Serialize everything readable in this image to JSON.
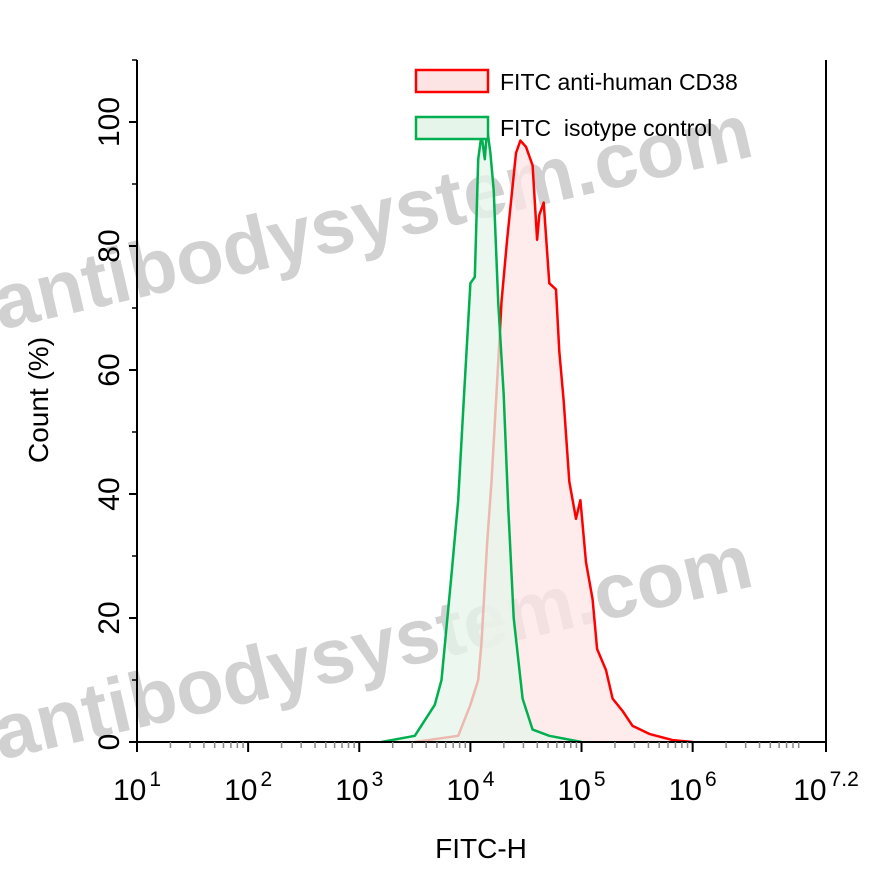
{
  "chart_data": {
    "type": "area",
    "title": "",
    "xlabel": "FITC-H",
    "ylabel": "Count  (%)",
    "x_scale": "log10",
    "xlim_log10": [
      1,
      7.2
    ],
    "ylim": [
      0,
      110
    ],
    "x_ticks": [
      {
        "base": "10",
        "exp": "1",
        "value": 1
      },
      {
        "base": "10",
        "exp": "2",
        "value": 2
      },
      {
        "base": "10",
        "exp": "3",
        "value": 3
      },
      {
        "base": "10",
        "exp": "4",
        "value": 4
      },
      {
        "base": "10",
        "exp": "5",
        "value": 5
      },
      {
        "base": "10",
        "exp": "6",
        "value": 6
      },
      {
        "base": "10",
        "exp": "7.2",
        "value": 7.2
      }
    ],
    "y_ticks": [
      "0",
      "20",
      "40",
      "60",
      "80",
      "100"
    ],
    "grid": false,
    "legend_placement": "top-right",
    "series": [
      {
        "name": "FITC anti-human CD38",
        "color": "#ff0000",
        "fill": "#fde4e4",
        "log10_x": [
          3.5,
          3.89,
          4.0,
          4.07,
          4.1,
          4.15,
          4.19,
          4.24,
          4.28,
          4.33,
          4.41,
          4.45,
          4.5,
          4.56,
          4.6,
          4.62,
          4.66,
          4.71,
          4.77,
          4.8,
          4.84,
          4.89,
          4.95,
          4.99,
          5.04,
          5.1,
          5.14,
          5.22,
          5.28,
          5.37,
          5.46,
          5.61,
          5.82,
          6.0
        ],
        "y": [
          0,
          1,
          6,
          10,
          16,
          32,
          42,
          58,
          71,
          81,
          95,
          97,
          96,
          93,
          81,
          85,
          87,
          74,
          73,
          63,
          55,
          42,
          36,
          39,
          29,
          23,
          15,
          11.6,
          7,
          5,
          2.6,
          1.3,
          0.3,
          0
        ]
      },
      {
        "name": "FITC  isotype control",
        "color": "#00b050",
        "fill": "#e6f5ea",
        "log10_x": [
          3.2,
          3.5,
          3.68,
          3.74,
          3.83,
          3.89,
          3.94,
          4.0,
          4.04,
          4.07,
          4.1,
          4.13,
          4.15,
          4.18,
          4.21,
          4.25,
          4.3,
          4.34,
          4.39,
          4.47,
          4.56,
          4.71,
          5.0
        ],
        "y": [
          0,
          1,
          6,
          10,
          27,
          39,
          55,
          74,
          75,
          94,
          98,
          94,
          99,
          95,
          89,
          71,
          56,
          38,
          20,
          7,
          2,
          1,
          0
        ]
      }
    ],
    "watermark": "antibodysystem.com"
  }
}
